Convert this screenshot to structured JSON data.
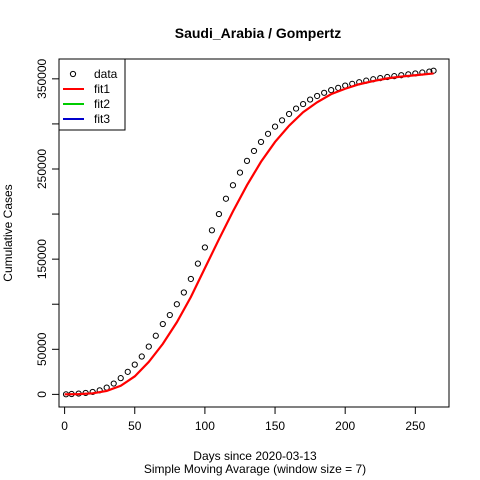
{
  "chart_data": {
    "type": "line",
    "title": "Saudi_Arabia / Gompertz",
    "xlabel": "Days since 2020-03-13",
    "xlabel_sub": "Simple Moving Avarage (window size = 7)",
    "ylabel": "Cumulative Cases",
    "xlim": [
      -4,
      274
    ],
    "ylim": [
      -14000,
      372000
    ],
    "xticks": [
      0,
      50,
      100,
      150,
      200,
      250
    ],
    "yticks": [
      0,
      50000,
      150000,
      250000,
      350000
    ],
    "yticks_minor": [
      100000,
      200000,
      300000
    ],
    "legend_position": "top-left",
    "series": [
      {
        "name": "data",
        "kind": "points",
        "color": "#000000",
        "x": [
          1,
          5,
          10,
          15,
          20,
          25,
          30,
          35,
          40,
          45,
          50,
          55,
          60,
          65,
          70,
          75,
          80,
          85,
          90,
          95,
          100,
          105,
          110,
          115,
          120,
          125,
          130,
          135,
          140,
          145,
          150,
          155,
          160,
          165,
          170,
          175,
          180,
          185,
          190,
          195,
          200,
          205,
          210,
          215,
          220,
          225,
          230,
          235,
          240,
          245,
          250,
          255,
          260,
          263
        ],
        "y": [
          100,
          400,
          900,
          1600,
          2700,
          4500,
          7500,
          12000,
          18000,
          25000,
          33000,
          42000,
          53000,
          65000,
          78000,
          88000,
          100000,
          113000,
          128000,
          145000,
          163000,
          182000,
          200000,
          217000,
          232000,
          246000,
          259000,
          270000,
          280000,
          289000,
          297000,
          304000,
          311000,
          317000,
          322000,
          327000,
          331000,
          334500,
          337500,
          340000,
          342500,
          344500,
          346300,
          348000,
          349500,
          350800,
          352000,
          353000,
          354000,
          355000,
          356000,
          357000,
          358000,
          359000
        ]
      },
      {
        "name": "fit1",
        "kind": "line",
        "color": "#ff0000",
        "x": [
          0,
          10,
          20,
          30,
          40,
          50,
          60,
          70,
          80,
          90,
          100,
          110,
          120,
          130,
          140,
          150,
          160,
          170,
          180,
          190,
          200,
          210,
          220,
          230,
          240,
          250,
          263
        ],
        "y": [
          50,
          300,
          1200,
          3800,
          9500,
          20000,
          36000,
          56000,
          80000,
          108000,
          140000,
          172000,
          203000,
          232000,
          258000,
          280000,
          298000,
          313000,
          324000,
          333000,
          339000,
          344000,
          347500,
          350500,
          352500,
          354000,
          356000
        ]
      },
      {
        "name": "fit2",
        "kind": "line",
        "color": "#00cc00",
        "x": [],
        "y": []
      },
      {
        "name": "fit3",
        "kind": "line",
        "color": "#0000cc",
        "x": [],
        "y": []
      }
    ]
  }
}
